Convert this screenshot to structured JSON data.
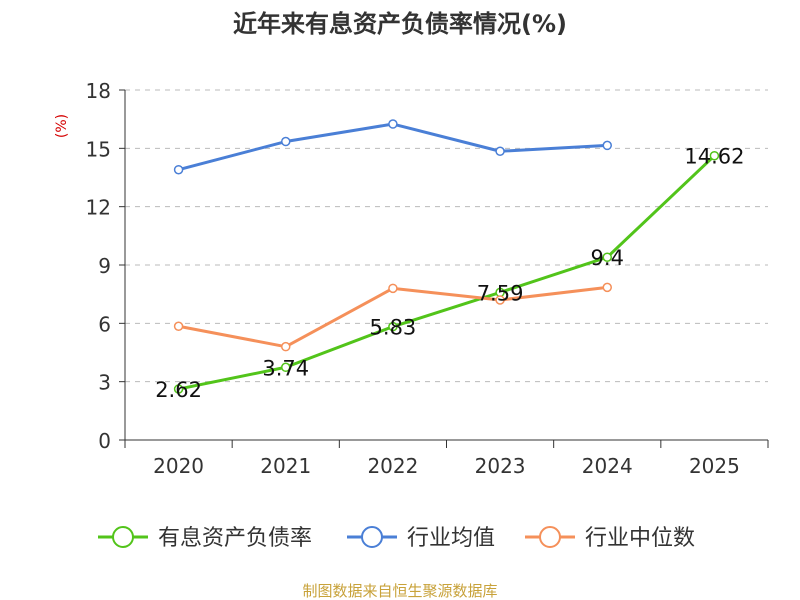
{
  "chart_data": {
    "type": "line",
    "title": "近年来有息资产负债率情况(%)",
    "ylabel": "(%)",
    "categories": [
      "2020",
      "2021",
      "2022",
      "2023",
      "2024",
      "2025"
    ],
    "ylim": [
      0,
      18
    ],
    "yticks": [
      "0",
      "3",
      "6",
      "9",
      "12",
      "15",
      "18"
    ],
    "grid": true,
    "legend_position": "bottom",
    "series": [
      {
        "name": "有息资产负债率",
        "color": "#52c41a",
        "values": [
          2.62,
          3.74,
          5.83,
          7.59,
          9.4,
          14.62
        ],
        "labels": [
          "2.62",
          "3.74",
          "5.83",
          "7.59",
          "9.4",
          "14.62"
        ]
      },
      {
        "name": "行业均值",
        "color": "#4a7fd6",
        "values": [
          13.9,
          15.35,
          16.25,
          14.85,
          15.15,
          null
        ]
      },
      {
        "name": "行业中位数",
        "color": "#f5905a",
        "values": [
          5.85,
          4.8,
          7.8,
          7.2,
          7.85,
          null
        ]
      }
    ],
    "source": "制图数据来自恒生聚源数据库"
  }
}
